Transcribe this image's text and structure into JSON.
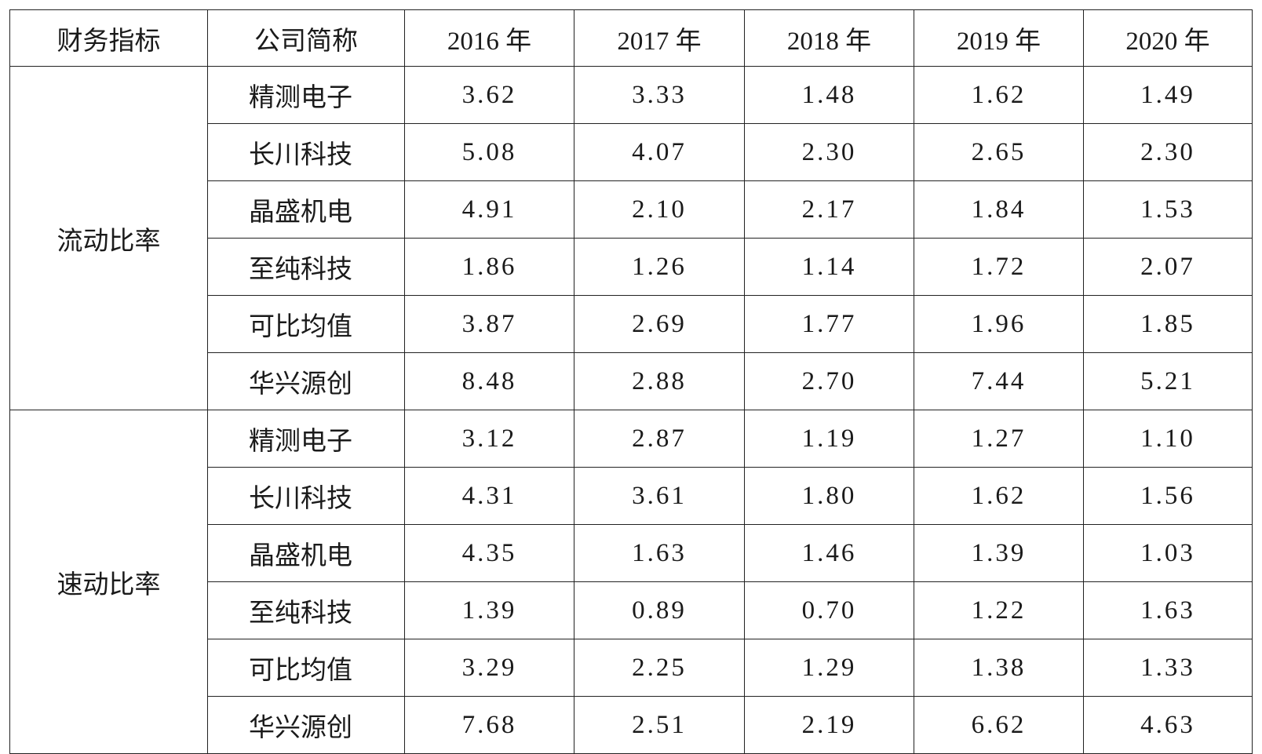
{
  "table": {
    "header": [
      "财务指标",
      "公司简称",
      "2016 年",
      "2017 年",
      "2018 年",
      "2019 年",
      "2020 年"
    ],
    "groups": [
      {
        "label": "流动比率",
        "rows": [
          [
            "精测电子",
            "3.62",
            "3.33",
            "1.48",
            "1.62",
            "1.49"
          ],
          [
            "长川科技",
            "5.08",
            "4.07",
            "2.30",
            "2.65",
            "2.30"
          ],
          [
            "晶盛机电",
            "4.91",
            "2.10",
            "2.17",
            "1.84",
            "1.53"
          ],
          [
            "至纯科技",
            "1.86",
            "1.26",
            "1.14",
            "1.72",
            "2.07"
          ],
          [
            "可比均值",
            "3.87",
            "2.69",
            "1.77",
            "1.96",
            "1.85"
          ],
          [
            "华兴源创",
            "8.48",
            "2.88",
            "2.70",
            "7.44",
            "5.21"
          ]
        ]
      },
      {
        "label": "速动比率",
        "rows": [
          [
            "精测电子",
            "3.12",
            "2.87",
            "1.19",
            "1.27",
            "1.10"
          ],
          [
            "长川科技",
            "4.31",
            "3.61",
            "1.80",
            "1.62",
            "1.56"
          ],
          [
            "晶盛机电",
            "4.35",
            "1.63",
            "1.46",
            "1.39",
            "1.03"
          ],
          [
            "至纯科技",
            "1.39",
            "0.89",
            "0.70",
            "1.22",
            "1.63"
          ],
          [
            "可比均值",
            "3.29",
            "2.25",
            "1.29",
            "1.38",
            "1.33"
          ],
          [
            "华兴源创",
            "7.68",
            "2.51",
            "2.19",
            "6.62",
            "4.63"
          ]
        ]
      }
    ]
  }
}
